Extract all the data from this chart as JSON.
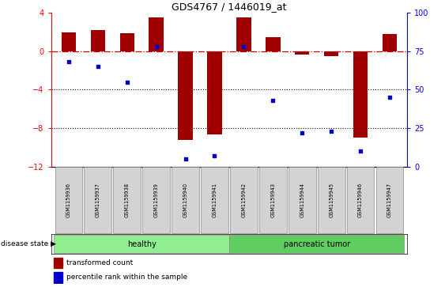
{
  "title": "GDS4767 / 1446019_at",
  "samples": [
    "GSM1159936",
    "GSM1159937",
    "GSM1159938",
    "GSM1159939",
    "GSM1159940",
    "GSM1159941",
    "GSM1159942",
    "GSM1159943",
    "GSM1159944",
    "GSM1159945",
    "GSM1159946",
    "GSM1159947"
  ],
  "transformed_count": [
    2.0,
    2.2,
    1.9,
    3.5,
    -9.2,
    -8.7,
    3.55,
    1.5,
    -0.3,
    -0.5,
    -9.0,
    1.8
  ],
  "percentile_rank": [
    68,
    65,
    55,
    78,
    5,
    7,
    78,
    43,
    22,
    23,
    10,
    45
  ],
  "ylim_left": [
    -12,
    4
  ],
  "ylim_right": [
    0,
    100
  ],
  "bar_color": "#a00000",
  "dot_color": "#0000cc",
  "hline_color": "#cc0000",
  "gridline_color": "#000000",
  "healthy_count": 6,
  "tumor_count": 6,
  "healthy_color": "#90ee90",
  "tumor_color": "#5fcd5f",
  "label_bg_color": "#d3d3d3",
  "disease_label": "disease state",
  "healthy_label": "healthy",
  "tumor_label": "pancreatic tumor",
  "legend1": "transformed count",
  "legend2": "percentile rank within the sample",
  "yticks_left": [
    4,
    0,
    -4,
    -8,
    -12
  ],
  "yticks_right": [
    100,
    75,
    50,
    25,
    0
  ],
  "dotted_lines": [
    -4,
    -8
  ]
}
